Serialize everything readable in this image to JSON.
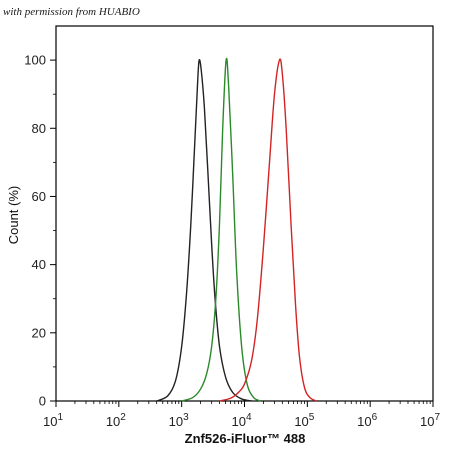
{
  "watermark": "with permission from HUABIO",
  "chart_data": {
    "type": "line",
    "title": "",
    "xlabel": "Znf526-iFluor™ 488",
    "ylabel": "Count (%)",
    "x_scale": "log",
    "xlim": [
      10,
      10000000
    ],
    "ylim": [
      0,
      110
    ],
    "x_ticks": [
      {
        "label": "10",
        "exp": "1"
      },
      {
        "label": "10",
        "exp": "2"
      },
      {
        "label": "10",
        "exp": "3"
      },
      {
        "label": "10",
        "exp": "4"
      },
      {
        "label": "10",
        "exp": "5"
      },
      {
        "label": "10",
        "exp": "6"
      },
      {
        "label": "10",
        "exp": "7"
      }
    ],
    "y_ticks": [
      "0",
      "20",
      "40",
      "60",
      "80",
      "100"
    ],
    "grid": false,
    "legend": "none",
    "series": [
      {
        "color": "#222222",
        "peak_x": 1850,
        "points": [
          [
            400,
            0
          ],
          [
            600,
            1.5
          ],
          [
            800,
            6
          ],
          [
            1000,
            16
          ],
          [
            1200,
            32
          ],
          [
            1400,
            52
          ],
          [
            1600,
            74
          ],
          [
            1800,
            94
          ],
          [
            1900,
            100
          ],
          [
            2050,
            97
          ],
          [
            2300,
            86
          ],
          [
            2600,
            68
          ],
          [
            3000,
            46
          ],
          [
            3400,
            30
          ],
          [
            4000,
            16
          ],
          [
            5000,
            7
          ],
          [
            6500,
            2.5
          ],
          [
            9000,
            0.6
          ],
          [
            13000,
            0
          ]
        ]
      },
      {
        "color": "#2a8a2a",
        "peak_x": 5100,
        "points": [
          [
            1000,
            0
          ],
          [
            1500,
            1
          ],
          [
            2000,
            3.5
          ],
          [
            2500,
            8
          ],
          [
            3000,
            16
          ],
          [
            3500,
            30
          ],
          [
            4000,
            52
          ],
          [
            4500,
            80
          ],
          [
            5100,
            100
          ],
          [
            5600,
            92
          ],
          [
            6500,
            66
          ],
          [
            7500,
            38
          ],
          [
            9000,
            16
          ],
          [
            11000,
            5
          ],
          [
            14000,
            1
          ],
          [
            18000,
            0
          ]
        ]
      },
      {
        "color": "#d32424",
        "peak_x": 36000,
        "points": [
          [
            4000,
            0
          ],
          [
            6000,
            0.8
          ],
          [
            8000,
            2.5
          ],
          [
            10000,
            5
          ],
          [
            13000,
            12
          ],
          [
            16000,
            24
          ],
          [
            20000,
            45
          ],
          [
            25000,
            70
          ],
          [
            30000,
            90
          ],
          [
            36000,
            100
          ],
          [
            40000,
            96
          ],
          [
            46000,
            80
          ],
          [
            55000,
            52
          ],
          [
            65000,
            28
          ],
          [
            75000,
            13
          ],
          [
            90000,
            4
          ],
          [
            110000,
            1
          ],
          [
            140000,
            0
          ]
        ]
      }
    ]
  }
}
